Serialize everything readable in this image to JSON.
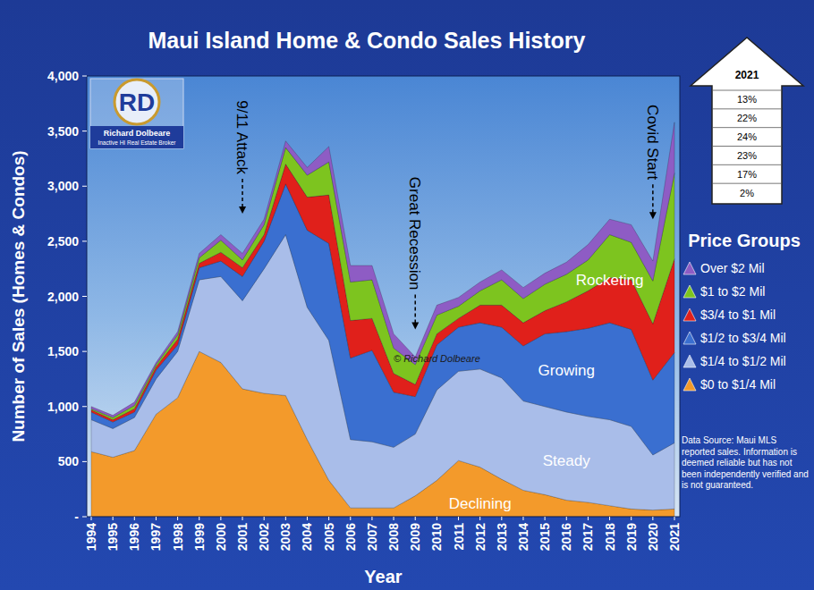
{
  "chart_data": {
    "type": "area",
    "stacked": true,
    "title": "Maui Island Home & Condo Sales History",
    "x_label": "Year",
    "y_label": "Number of Sales (Homes & Condos)",
    "categories": [
      "1994",
      "1995",
      "1996",
      "1997",
      "1998",
      "1999",
      "2000",
      "2001",
      "2002",
      "2003",
      "2004",
      "2005",
      "2006",
      "2007",
      "2008",
      "2009",
      "2010",
      "2011",
      "2012",
      "2013",
      "2014",
      "2015",
      "2016",
      "2017",
      "2018",
      "2019",
      "2020",
      "2021"
    ],
    "ylim": [
      0,
      4000
    ],
    "yticks": [
      {
        "value": 0,
        "label": "-"
      },
      500,
      {
        "value": 1000,
        "label": "1,000"
      },
      {
        "value": 1500,
        "label": "1,500"
      },
      {
        "value": 2000,
        "label": "2,000"
      },
      {
        "value": 2500,
        "label": "2,500"
      },
      {
        "value": 3000,
        "label": "3,000"
      },
      {
        "value": 3500,
        "label": "3,500"
      },
      {
        "value": 4000,
        "label": "4,000"
      }
    ],
    "grid": false,
    "legend": "right",
    "legend_title": "Price Groups",
    "series": [
      {
        "name": "$0 to $1/4 Mil",
        "color": "#f39a2b",
        "values": [
          590,
          540,
          600,
          930,
          1080,
          1500,
          1400,
          1160,
          1120,
          1100,
          700,
          330,
          80,
          80,
          80,
          190,
          330,
          510,
          450,
          340,
          240,
          200,
          150,
          130,
          100,
          70,
          60,
          70
        ]
      },
      {
        "name": "$1/4 to $1/2 Mil",
        "color": "#a9bde9",
        "values": [
          290,
          260,
          300,
          320,
          420,
          650,
          780,
          800,
          1130,
          1460,
          1200,
          1270,
          620,
          600,
          550,
          560,
          820,
          810,
          890,
          920,
          810,
          800,
          800,
          780,
          780,
          750,
          500,
          600
        ]
      },
      {
        "name": "$1/2 to $3/4 Mil",
        "color": "#3a6fd0",
        "values": [
          70,
          60,
          50,
          80,
          60,
          110,
          140,
          220,
          250,
          460,
          700,
          880,
          740,
          830,
          500,
          340,
          410,
          400,
          420,
          460,
          500,
          660,
          730,
          800,
          880,
          880,
          680,
          820
        ]
      },
      {
        "name": "$3/4 to $1 Mil",
        "color": "#e0201b",
        "values": [
          20,
          20,
          30,
          30,
          50,
          40,
          80,
          80,
          60,
          180,
          300,
          440,
          340,
          290,
          170,
          110,
          100,
          80,
          160,
          200,
          210,
          210,
          270,
          340,
          410,
          450,
          510,
          850
        ]
      },
      {
        "name": "$1 to $2 Mil",
        "color": "#7dc41f",
        "values": [
          10,
          20,
          30,
          20,
          40,
          50,
          110,
          70,
          90,
          150,
          200,
          300,
          350,
          350,
          230,
          180,
          170,
          110,
          130,
          230,
          220,
          240,
          250,
          280,
          390,
          340,
          390,
          780
        ]
      },
      {
        "name": "Over $2 Mil",
        "color": "#8e5cc4",
        "values": [
          20,
          20,
          30,
          20,
          30,
          40,
          50,
          60,
          50,
          60,
          70,
          140,
          150,
          130,
          130,
          70,
          90,
          80,
          80,
          90,
          100,
          100,
          110,
          140,
          140,
          160,
          180,
          460
        ]
      }
    ],
    "annotations": [
      {
        "text": "9/11 Attack",
        "x": "2001",
        "y": 2750
      },
      {
        "text": "Great Recession",
        "x": "2009",
        "y": 1700
      },
      {
        "text": "Covid Start",
        "x": "2020",
        "y": 2700
      }
    ],
    "area_labels": [
      {
        "text": "Rocketing",
        "x": "2018",
        "y": 2150
      },
      {
        "text": "Growing",
        "x": "2016",
        "y": 1330
      },
      {
        "text": "Steady",
        "x": "2016",
        "y": 510
      },
      {
        "text": "Declining",
        "x": "2012",
        "y": 120
      }
    ],
    "inset": {
      "title": "2021",
      "labels": [
        "13%",
        "22%",
        "24%",
        "23%",
        "17%",
        "2%"
      ]
    },
    "logo": {
      "initials": "RD",
      "name": "Richard Dolbeare",
      "subtitle": "Inactive HI Real Estate Broker"
    },
    "watermark": {
      "text": "© Richard Dolbeare",
      "x": "2010",
      "y": 1400
    },
    "source_note": "Data Source:  Maui MLS reported sales.  Information is deemed reliable but has not been independently verified and is not guaranteed."
  }
}
